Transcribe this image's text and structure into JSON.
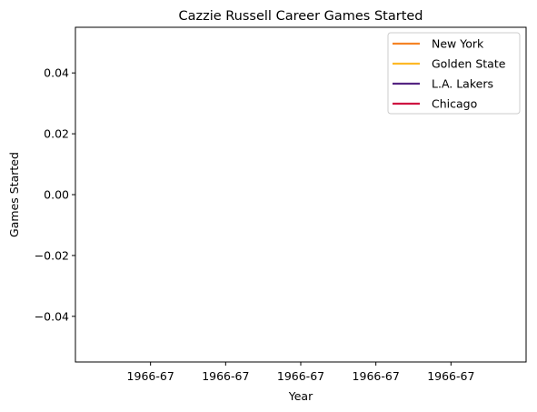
{
  "chart_data": {
    "type": "line",
    "title": "Cazzie Russell Career Games Started",
    "xlabel": "Year",
    "ylabel": "Games Started",
    "ylim": [
      -0.055,
      0.055
    ],
    "yticks": [
      -0.04,
      -0.02,
      0.0,
      0.02,
      0.04
    ],
    "ytick_labels": [
      "−0.04",
      "−0.02",
      "0.00",
      "0.02",
      "0.04"
    ],
    "xtick_labels": [
      "1966-67",
      "1966-67",
      "1966-67",
      "1966-67",
      "1966-67"
    ],
    "grid": false,
    "legend_position": "top-right",
    "series": [
      {
        "name": "New York",
        "color": "#f58426",
        "x": [
          "1966-67"
        ],
        "values": [
          0
        ]
      },
      {
        "name": "Golden State",
        "color": "#fdb927",
        "x": [],
        "values": []
      },
      {
        "name": "L.A. Lakers",
        "color": "#552583",
        "x": [],
        "values": []
      },
      {
        "name": "Chicago",
        "color": "#ce1141",
        "x": [],
        "values": []
      }
    ]
  }
}
